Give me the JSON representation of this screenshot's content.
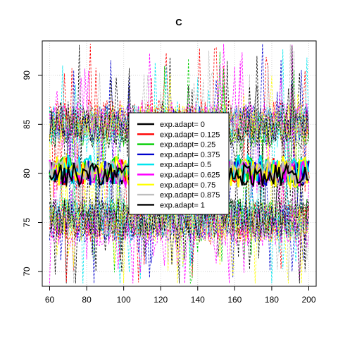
{
  "chart_data": {
    "type": "line",
    "title": "C",
    "xlabel": "",
    "ylabel": "",
    "xlim": [
      56,
      204
    ],
    "ylim": [
      68.5,
      93.5
    ],
    "xticks": [
      60,
      80,
      100,
      120,
      140,
      160,
      180,
      200
    ],
    "yticks": [
      70,
      75,
      80,
      85,
      90
    ],
    "grid": true,
    "legend_position": "center",
    "x_range": [
      60,
      200
    ],
    "series": [
      {
        "name": "exp.adapt= 0",
        "color": "#000000",
        "center": 80.0,
        "amp": 1.2,
        "band_upper": 85.0,
        "band_lower": 75.5
      },
      {
        "name": "exp.adapt= 0.125",
        "color": "#ff0000",
        "center": 80.2,
        "amp": 1.4,
        "band_upper": 85.5,
        "band_lower": 75.0
      },
      {
        "name": "exp.adapt= 0.25",
        "color": "#00cd00",
        "center": 80.3,
        "amp": 1.3,
        "band_upper": 84.5,
        "band_lower": 75.5
      },
      {
        "name": "exp.adapt= 0.375",
        "color": "#0000cd",
        "center": 80.1,
        "amp": 1.3,
        "band_upper": 85.0,
        "band_lower": 75.0
      },
      {
        "name": "exp.adapt= 0.5",
        "color": "#00e5ee",
        "center": 80.4,
        "amp": 1.5,
        "band_upper": 85.0,
        "band_lower": 75.5
      },
      {
        "name": "exp.adapt= 0.625",
        "color": "#ff00ff",
        "center": 80.0,
        "amp": 1.4,
        "band_upper": 85.5,
        "band_lower": 74.5
      },
      {
        "name": "exp.adapt= 0.75",
        "color": "#ffff00",
        "center": 80.2,
        "amp": 1.6,
        "band_upper": 85.0,
        "band_lower": 75.0
      },
      {
        "name": "exp.adapt= 0.875",
        "color": "#bebebe",
        "center": 80.1,
        "amp": 1.3,
        "band_upper": 85.0,
        "band_lower": 75.5
      },
      {
        "name": "exp.adapt= 1",
        "color": "#000000",
        "center": 79.9,
        "amp": 1.2,
        "band_upper": 84.5,
        "band_lower": 75.5
      }
    ]
  }
}
